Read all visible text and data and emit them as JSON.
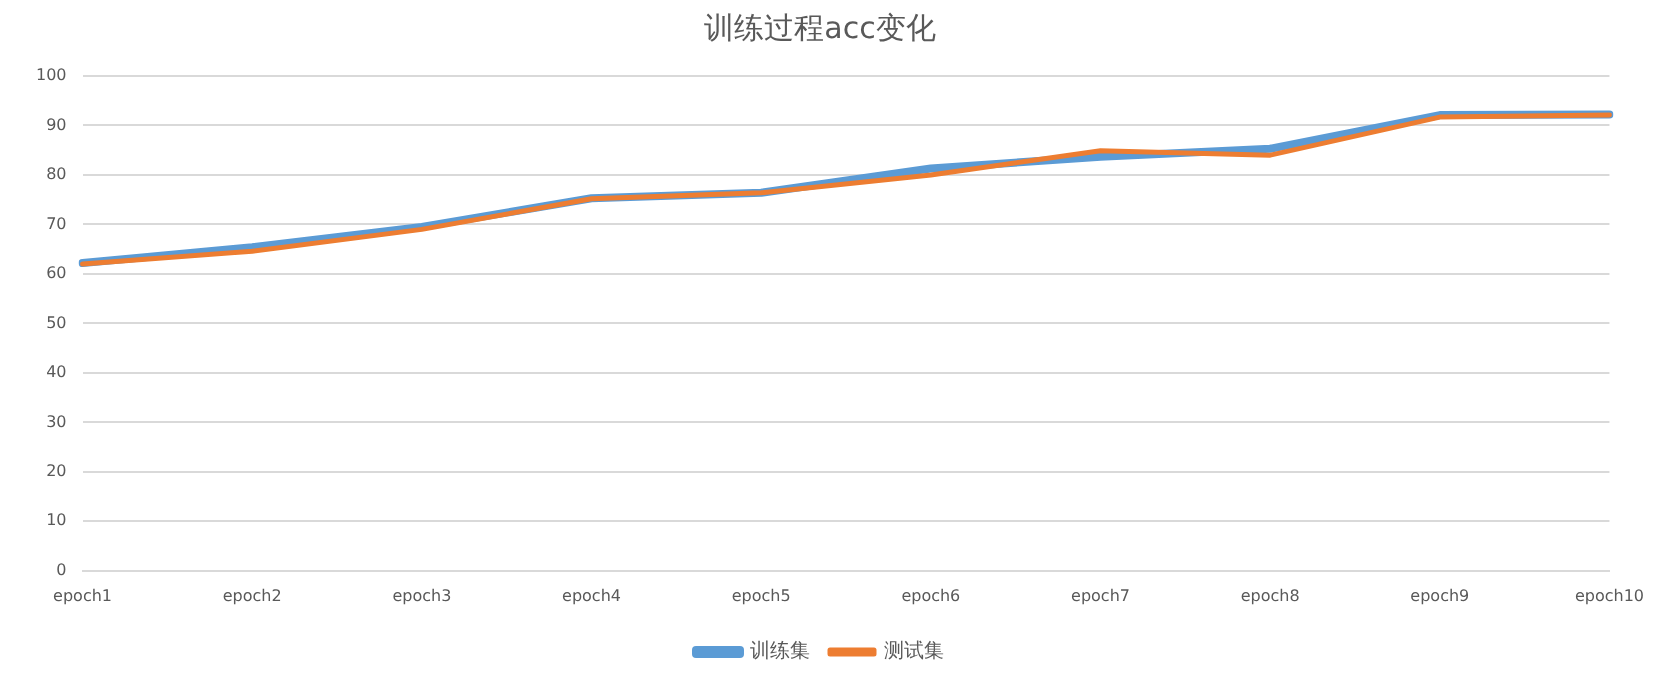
{
  "chart_data": {
    "type": "line",
    "title": "训练过程acc变化",
    "categories": [
      "epoch1",
      "epoch2",
      "epoch3",
      "epoch4",
      "epoch5",
      "epoch6",
      "epoch7",
      "epoch8",
      "epoch9",
      "epoch10"
    ],
    "series": [
      {
        "name": "训练集",
        "color": "#5b9bd5",
        "values": [
          62.2,
          65.4,
          69.5,
          75.3,
          76.4,
          81.3,
          83.7,
          85.3,
          92.1,
          92.2
        ]
      },
      {
        "name": "测试集",
        "color": "#ed7d31",
        "values": [
          62,
          64.6,
          69,
          75.2,
          76.4,
          80,
          84.9,
          84,
          91.7,
          92.1
        ]
      }
    ],
    "ylim": [
      0,
      100
    ],
    "yticks": [
      0,
      10,
      20,
      30,
      40,
      50,
      60,
      70,
      80,
      90,
      100
    ],
    "grid": "y",
    "legend": "bottom",
    "marker": "none",
    "line_style": "solid"
  }
}
